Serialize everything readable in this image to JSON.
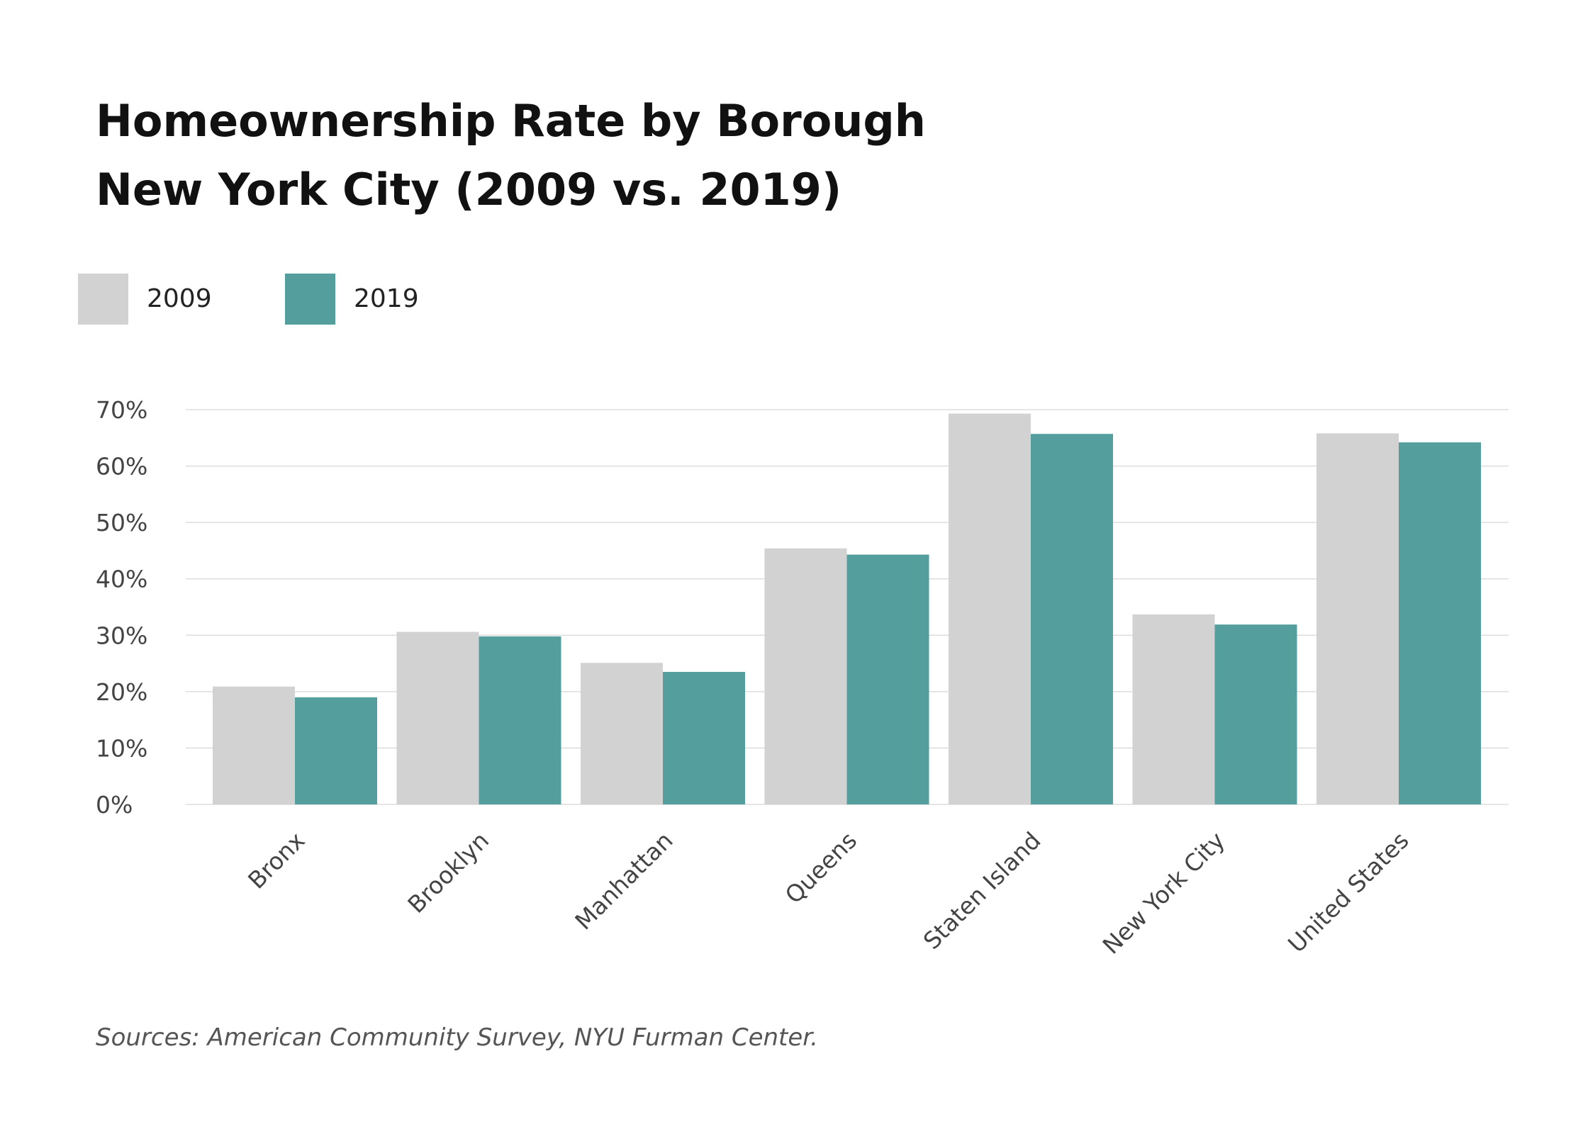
{
  "chart_data": {
    "type": "bar",
    "title": "Homeownership Rate by Borough",
    "subtitle": "New York City (2009 vs. 2019)",
    "categories": [
      "Bronx",
      "Brooklyn",
      "Manhattan",
      "Queens",
      "Staten Island",
      "New York City",
      "United States"
    ],
    "series": [
      {
        "name": "2009",
        "color": "#d2d2d2",
        "values": [
          0.209,
          0.306,
          0.251,
          0.454,
          0.693,
          0.337,
          0.658
        ]
      },
      {
        "name": "2019",
        "color": "#559e9e",
        "values": [
          0.19,
          0.298,
          0.235,
          0.443,
          0.657,
          0.319,
          0.642
        ]
      }
    ],
    "ylim": [
      0,
      0.7
    ],
    "yticks": [
      {
        "value": 0,
        "label": "0%"
      },
      {
        "value": 0.1,
        "label": "10%"
      },
      {
        "value": 0.2,
        "label": "20%"
      },
      {
        "value": 0.3,
        "label": "30%"
      },
      {
        "value": 0.4,
        "label": "40%"
      },
      {
        "value": 0.5,
        "label": "50%"
      },
      {
        "value": 0.6,
        "label": "60%"
      },
      {
        "value": 0.7,
        "label": "70%"
      }
    ],
    "xlabel": "",
    "ylabel": "",
    "grid": true,
    "legend_position": "top-left"
  },
  "source_note": "Sources: American Community Survey, NYU Furman Center."
}
